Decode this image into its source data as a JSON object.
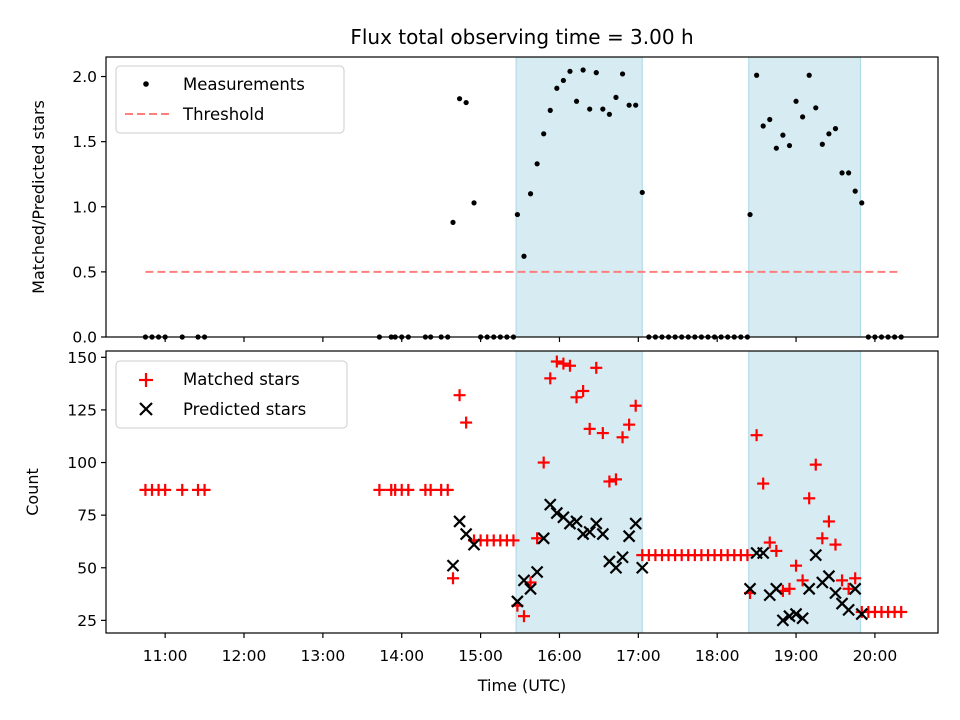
{
  "colors": {
    "shade": "#add8e6",
    "matched": "#ff0000",
    "threshold": "#ff7f7f",
    "points": "#000000"
  },
  "chart_data": [
    {
      "type": "scatter",
      "title": "Flux total observing time = 3.00 h",
      "xlabel": "",
      "ylabel": "Matched/Predicted stars",
      "xlim": [
        "10:15",
        "20:48"
      ],
      "ylim": [
        0,
        2.15
      ],
      "y_ticks": [
        "0.0",
        "0.5",
        "1.0",
        "1.5",
        "2.0"
      ],
      "legend": [
        "Measurements",
        "Threshold"
      ],
      "legend_position": "upper-left",
      "shaded_intervals": [
        [
          "15:27",
          "17:03"
        ],
        [
          "18:24",
          "19:49"
        ]
      ],
      "threshold": {
        "name": "Threshold",
        "y": 0.5,
        "x_range": [
          "10:45",
          "20:20"
        ]
      },
      "series": [
        {
          "name": "Measurements",
          "points": [
            [
              "10:45",
              0
            ],
            [
              "10:50",
              0
            ],
            [
              "10:55",
              0
            ],
            [
              "11:00",
              0
            ],
            [
              "11:13",
              0
            ],
            [
              "11:25",
              0
            ],
            [
              "11:30",
              0
            ],
            [
              "13:43",
              0
            ],
            [
              "13:52",
              0
            ],
            [
              "13:55",
              0
            ],
            [
              "14:00",
              0
            ],
            [
              "14:05",
              0
            ],
            [
              "14:18",
              0
            ],
            [
              "14:22",
              0
            ],
            [
              "14:30",
              0
            ],
            [
              "14:35",
              0
            ],
            [
              "14:39",
              0.88
            ],
            [
              "14:44",
              1.83
            ],
            [
              "14:49",
              1.8
            ],
            [
              "14:55",
              1.03
            ],
            [
              "15:00",
              0
            ],
            [
              "15:05",
              0
            ],
            [
              "15:10",
              0
            ],
            [
              "15:15",
              0
            ],
            [
              "15:20",
              0
            ],
            [
              "15:25",
              0
            ],
            [
              "15:28",
              0.94
            ],
            [
              "15:33",
              0.62
            ],
            [
              "15:38",
              1.1
            ],
            [
              "15:43",
              1.33
            ],
            [
              "15:48",
              1.56
            ],
            [
              "15:53",
              1.74
            ],
            [
              "15:58",
              1.91
            ],
            [
              "16:03",
              1.97
            ],
            [
              "16:08",
              2.04
            ],
            [
              "16:13",
              1.81
            ],
            [
              "16:18",
              2.05
            ],
            [
              "16:23",
              1.75
            ],
            [
              "16:28",
              2.03
            ],
            [
              "16:33",
              1.75
            ],
            [
              "16:38",
              1.71
            ],
            [
              "16:43",
              1.84
            ],
            [
              "16:48",
              2.02
            ],
            [
              "16:53",
              1.78
            ],
            [
              "16:58",
              1.78
            ],
            [
              "17:03",
              1.11
            ],
            [
              "17:08",
              0
            ],
            [
              "17:13",
              0
            ],
            [
              "17:18",
              0
            ],
            [
              "17:23",
              0
            ],
            [
              "17:28",
              0
            ],
            [
              "17:33",
              0
            ],
            [
              "17:38",
              0
            ],
            [
              "17:43",
              0
            ],
            [
              "17:48",
              0
            ],
            [
              "17:53",
              0
            ],
            [
              "17:58",
              0
            ],
            [
              "18:03",
              0
            ],
            [
              "18:08",
              0
            ],
            [
              "18:13",
              0
            ],
            [
              "18:18",
              0
            ],
            [
              "18:23",
              0
            ],
            [
              "18:25",
              0.94
            ],
            [
              "18:30",
              2.01
            ],
            [
              "18:35",
              1.62
            ],
            [
              "18:40",
              1.67
            ],
            [
              "18:45",
              1.45
            ],
            [
              "18:50",
              1.55
            ],
            [
              "18:55",
              1.47
            ],
            [
              "19:00",
              1.81
            ],
            [
              "19:05",
              1.69
            ],
            [
              "19:10",
              2.01
            ],
            [
              "19:15",
              1.76
            ],
            [
              "19:20",
              1.48
            ],
            [
              "19:25",
              1.56
            ],
            [
              "19:30",
              1.6
            ],
            [
              "19:35",
              1.26
            ],
            [
              "19:40",
              1.26
            ],
            [
              "19:45",
              1.12
            ],
            [
              "19:50",
              1.03
            ],
            [
              "19:55",
              0
            ],
            [
              "20:00",
              0
            ],
            [
              "20:05",
              0
            ],
            [
              "20:10",
              0
            ],
            [
              "20:15",
              0
            ],
            [
              "20:20",
              0
            ]
          ]
        }
      ]
    },
    {
      "type": "scatter",
      "title": "",
      "xlabel": "Time (UTC)",
      "ylabel": "Count",
      "xlim": [
        "10:15",
        "20:48"
      ],
      "ylim": [
        19,
        153
      ],
      "x_ticks": [
        "11:00",
        "12:00",
        "13:00",
        "14:00",
        "15:00",
        "16:00",
        "17:00",
        "18:00",
        "19:00",
        "20:00"
      ],
      "y_ticks": [
        "25",
        "50",
        "75",
        "100",
        "125",
        "150"
      ],
      "legend": [
        "Matched stars",
        "Predicted stars"
      ],
      "legend_position": "upper-left",
      "shaded_intervals": [
        [
          "15:27",
          "17:03"
        ],
        [
          "18:24",
          "19:49"
        ]
      ],
      "series": [
        {
          "name": "Matched stars",
          "points": [
            [
              "10:45",
              87
            ],
            [
              "10:50",
              87
            ],
            [
              "10:55",
              87
            ],
            [
              "11:00",
              87
            ],
            [
              "11:13",
              87
            ],
            [
              "11:25",
              87
            ],
            [
              "11:30",
              87
            ],
            [
              "13:43",
              87
            ],
            [
              "13:52",
              87
            ],
            [
              "13:55",
              87
            ],
            [
              "14:00",
              87
            ],
            [
              "14:05",
              87
            ],
            [
              "14:18",
              87
            ],
            [
              "14:22",
              87
            ],
            [
              "14:30",
              87
            ],
            [
              "14:35",
              87
            ],
            [
              "14:39",
              45
            ],
            [
              "14:44",
              132
            ],
            [
              "14:49",
              119
            ],
            [
              "14:55",
              63
            ],
            [
              "15:00",
              63
            ],
            [
              "15:05",
              63
            ],
            [
              "15:10",
              63
            ],
            [
              "15:15",
              63
            ],
            [
              "15:20",
              63
            ],
            [
              "15:25",
              63
            ],
            [
              "15:28",
              32
            ],
            [
              "15:33",
              27
            ],
            [
              "15:38",
              43
            ],
            [
              "15:43",
              64
            ],
            [
              "15:48",
              100
            ],
            [
              "15:53",
              140
            ],
            [
              "15:58",
              148
            ],
            [
              "16:03",
              147
            ],
            [
              "16:08",
              146
            ],
            [
              "16:13",
              131
            ],
            [
              "16:18",
              134
            ],
            [
              "16:23",
              116
            ],
            [
              "16:28",
              145
            ],
            [
              "16:33",
              114
            ],
            [
              "16:38",
              91
            ],
            [
              "16:43",
              92
            ],
            [
              "16:48",
              112
            ],
            [
              "16:53",
              118
            ],
            [
              "16:58",
              127
            ],
            [
              "17:03",
              56
            ],
            [
              "17:08",
              56
            ],
            [
              "17:13",
              56
            ],
            [
              "17:18",
              56
            ],
            [
              "17:23",
              56
            ],
            [
              "17:28",
              56
            ],
            [
              "17:33",
              56
            ],
            [
              "17:38",
              56
            ],
            [
              "17:43",
              56
            ],
            [
              "17:48",
              56
            ],
            [
              "17:53",
              56
            ],
            [
              "17:58",
              56
            ],
            [
              "18:03",
              56
            ],
            [
              "18:08",
              56
            ],
            [
              "18:13",
              56
            ],
            [
              "18:18",
              56
            ],
            [
              "18:23",
              56
            ],
            [
              "18:25",
              38
            ],
            [
              "18:30",
              113
            ],
            [
              "18:35",
              90
            ],
            [
              "18:40",
              62
            ],
            [
              "18:45",
              58
            ],
            [
              "18:50",
              39
            ],
            [
              "18:55",
              40
            ],
            [
              "19:00",
              51
            ],
            [
              "19:05",
              44
            ],
            [
              "19:10",
              83
            ],
            [
              "19:15",
              99
            ],
            [
              "19:20",
              64
            ],
            [
              "19:25",
              72
            ],
            [
              "19:30",
              61
            ],
            [
              "19:35",
              44
            ],
            [
              "19:40",
              40
            ],
            [
              "19:45",
              45
            ],
            [
              "19:50",
              29
            ],
            [
              "19:55",
              29
            ],
            [
              "20:00",
              29
            ],
            [
              "20:05",
              29
            ],
            [
              "20:10",
              29
            ],
            [
              "20:15",
              29
            ],
            [
              "20:20",
              29
            ]
          ]
        },
        {
          "name": "Predicted stars",
          "points": [
            [
              "14:39",
              51
            ],
            [
              "14:44",
              72
            ],
            [
              "14:49",
              66
            ],
            [
              "14:55",
              61
            ],
            [
              "15:28",
              34
            ],
            [
              "15:33",
              44
            ],
            [
              "15:38",
              40
            ],
            [
              "15:43",
              48
            ],
            [
              "15:48",
              64
            ],
            [
              "15:53",
              80
            ],
            [
              "15:58",
              76
            ],
            [
              "16:03",
              74
            ],
            [
              "16:08",
              71
            ],
            [
              "16:13",
              72
            ],
            [
              "16:18",
              66
            ],
            [
              "16:23",
              67
            ],
            [
              "16:28",
              71
            ],
            [
              "16:33",
              66
            ],
            [
              "16:38",
              53
            ],
            [
              "16:43",
              50
            ],
            [
              "16:48",
              55
            ],
            [
              "16:53",
              65
            ],
            [
              "16:58",
              71
            ],
            [
              "17:03",
              50
            ],
            [
              "18:25",
              40
            ],
            [
              "18:30",
              57
            ],
            [
              "18:35",
              57
            ],
            [
              "18:40",
              37
            ],
            [
              "18:45",
              40
            ],
            [
              "18:50",
              25
            ],
            [
              "18:55",
              27
            ],
            [
              "19:00",
              28
            ],
            [
              "19:05",
              26
            ],
            [
              "19:10",
              40
            ],
            [
              "19:15",
              56
            ],
            [
              "19:20",
              43
            ],
            [
              "19:25",
              46
            ],
            [
              "19:30",
              38
            ],
            [
              "19:35",
              33
            ],
            [
              "19:40",
              30
            ],
            [
              "19:45",
              40
            ],
            [
              "19:50",
              28
            ]
          ]
        }
      ]
    }
  ]
}
